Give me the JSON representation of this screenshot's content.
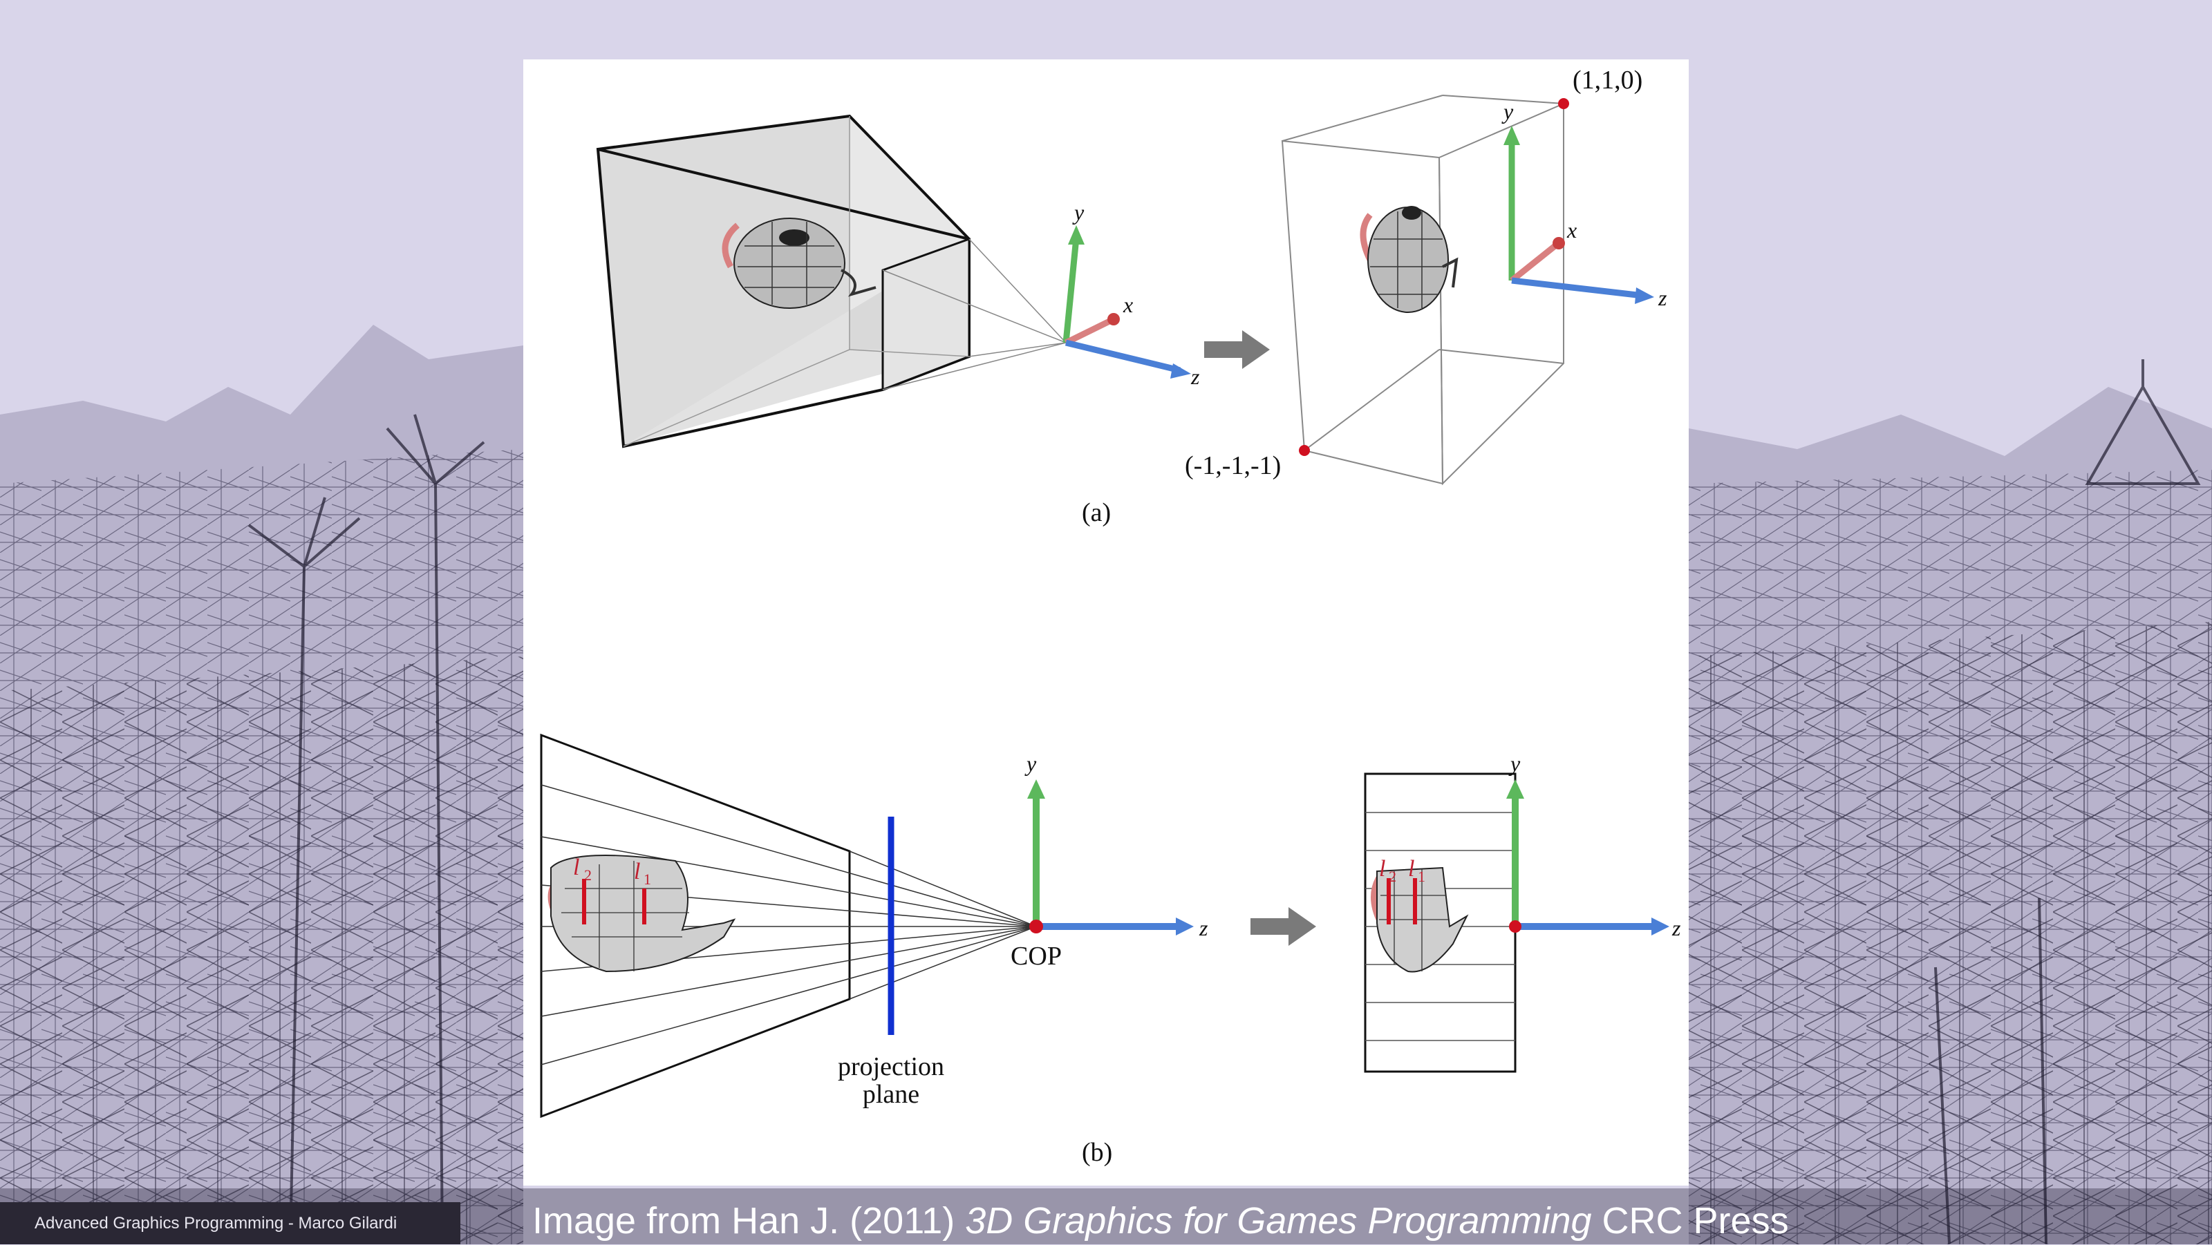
{
  "footer": {
    "author_line": "Advanced Graphics Programming - Marco Gilardi"
  },
  "credit": {
    "prefix": "Image from Han J. (2011) ",
    "book_title": "3D Graphics for Games Programming",
    "suffix": " CRC Press"
  },
  "figure_a": {
    "axis_y": "y",
    "axis_x": "x",
    "axis_z": "z",
    "corner_max": "(1,1,0)",
    "corner_min": "(-1,-1,-1)",
    "caption": "(a)"
  },
  "figure_b": {
    "axis_y": "y",
    "axis_z": "z",
    "cop_label": "COP",
    "plane_label_line1": "projection",
    "plane_label_line2": "plane",
    "l2": "l",
    "l2_sub": "2",
    "l1": "l",
    "l1_sub": "1",
    "caption": "(b)"
  },
  "colors": {
    "axis_x": "#d9534f",
    "axis_y": "#5cb85c",
    "axis_z": "#4a7fd6",
    "plane": "#1030d0",
    "point": "#d01020",
    "background": "#d9d5ea"
  }
}
